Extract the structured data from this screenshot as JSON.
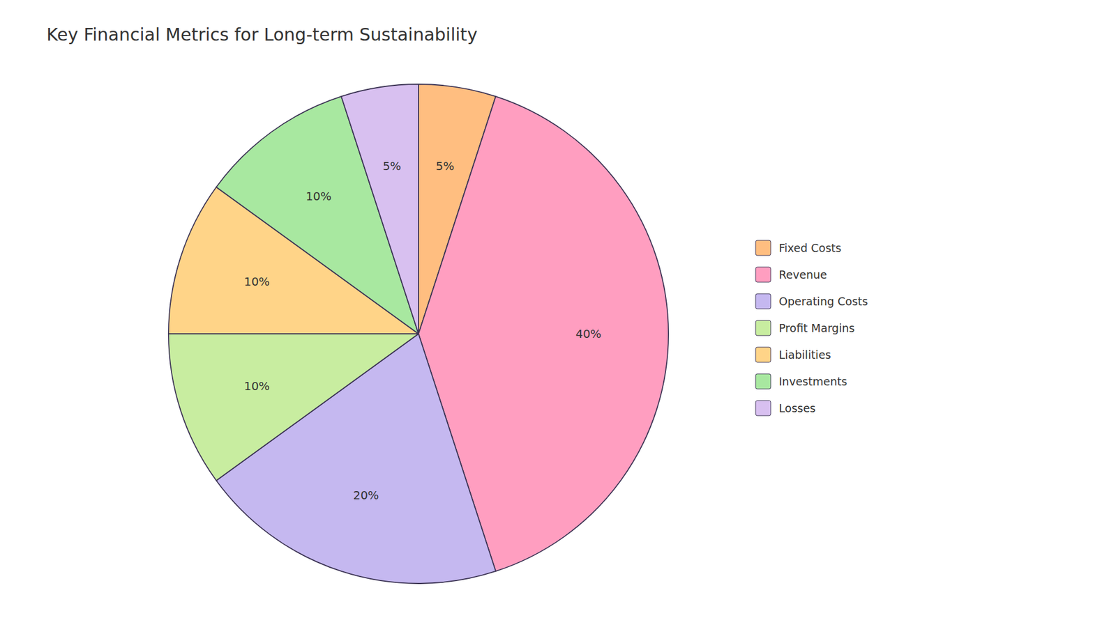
{
  "chart_data": {
    "type": "pie",
    "title": "Key Financial Metrics for Long-term Sustainability",
    "categories": [
      "Fixed Costs",
      "Revenue",
      "Operating Costs",
      "Profit Margins",
      "Liabilities",
      "Investments",
      "Losses"
    ],
    "values": [
      5,
      40,
      20,
      10,
      10,
      10,
      5
    ],
    "value_labels": [
      "5%",
      "40%",
      "20%",
      "10%",
      "10%",
      "10%",
      "5%"
    ],
    "colors": [
      "#FFBE80",
      "#FF9EC0",
      "#C5B8F0",
      "#C8EDA0",
      "#FFD488",
      "#A8E8A0",
      "#D8C0F0"
    ],
    "data_labels": true,
    "legend": "right"
  }
}
